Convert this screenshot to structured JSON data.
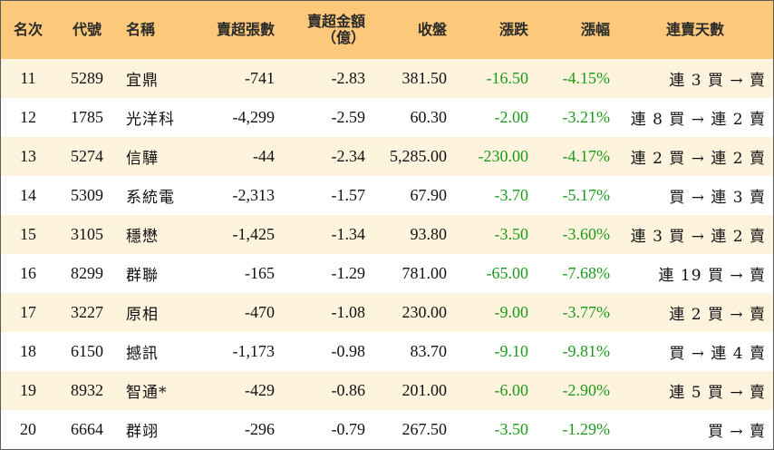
{
  "table": {
    "headers": {
      "rank": "名次",
      "code": "代號",
      "name": "名稱",
      "net_sell_lots": "賣超張數",
      "net_sell_amount": "賣超金額\n（億）",
      "close": "收盤",
      "change": "漲跌",
      "change_pct": "漲幅",
      "streak": "連賣天數"
    },
    "rows": [
      {
        "rank": "11",
        "code": "5289",
        "name": "宜鼎",
        "lots": "-741",
        "amount": "-2.83",
        "close": "381.50",
        "change": "-16.50",
        "pct": "-4.15%",
        "streak": "連 3 買 → 賣"
      },
      {
        "rank": "12",
        "code": "1785",
        "name": "光洋科",
        "lots": "-4,299",
        "amount": "-2.59",
        "close": "60.30",
        "change": "-2.00",
        "pct": "-3.21%",
        "streak": "連 8 買 → 連 2 賣"
      },
      {
        "rank": "13",
        "code": "5274",
        "name": "信驊",
        "lots": "-44",
        "amount": "-2.34",
        "close": "5,285.00",
        "change": "-230.00",
        "pct": "-4.17%",
        "streak": "連 2 買 → 連 2 賣"
      },
      {
        "rank": "14",
        "code": "5309",
        "name": "系統電",
        "lots": "-2,313",
        "amount": "-1.57",
        "close": "67.90",
        "change": "-3.70",
        "pct": "-5.17%",
        "streak": "買 → 連 3 賣"
      },
      {
        "rank": "15",
        "code": "3105",
        "name": "穩懋",
        "lots": "-1,425",
        "amount": "-1.34",
        "close": "93.80",
        "change": "-3.50",
        "pct": "-3.60%",
        "streak": "連 3 買 → 連 2 賣"
      },
      {
        "rank": "16",
        "code": "8299",
        "name": "群聯",
        "lots": "-165",
        "amount": "-1.29",
        "close": "781.00",
        "change": "-65.00",
        "pct": "-7.68%",
        "streak": "連 19 買 → 賣"
      },
      {
        "rank": "17",
        "code": "3227",
        "name": "原相",
        "lots": "-470",
        "amount": "-1.08",
        "close": "230.00",
        "change": "-9.00",
        "pct": "-3.77%",
        "streak": "連 2 買 → 賣"
      },
      {
        "rank": "18",
        "code": "6150",
        "name": "撼訊",
        "lots": "-1,173",
        "amount": "-0.98",
        "close": "83.70",
        "change": "-9.10",
        "pct": "-9.81%",
        "streak": "買 → 連 4 賣"
      },
      {
        "rank": "19",
        "code": "8932",
        "name": "智通*",
        "lots": "-429",
        "amount": "-0.86",
        "close": "201.00",
        "change": "-6.00",
        "pct": "-2.90%",
        "streak": "連 5 買 → 賣"
      },
      {
        "rank": "20",
        "code": "6664",
        "name": "群翊",
        "lots": "-296",
        "amount": "-0.79",
        "close": "267.50",
        "change": "-3.50",
        "pct": "-1.29%",
        "streak": "買 → 賣"
      }
    ]
  },
  "colors": {
    "header_bg": "#fcc97a",
    "odd_row_bg": "#fef3dc",
    "even_row_bg": "#ffffff",
    "negative_green": "#1c9a1c"
  }
}
